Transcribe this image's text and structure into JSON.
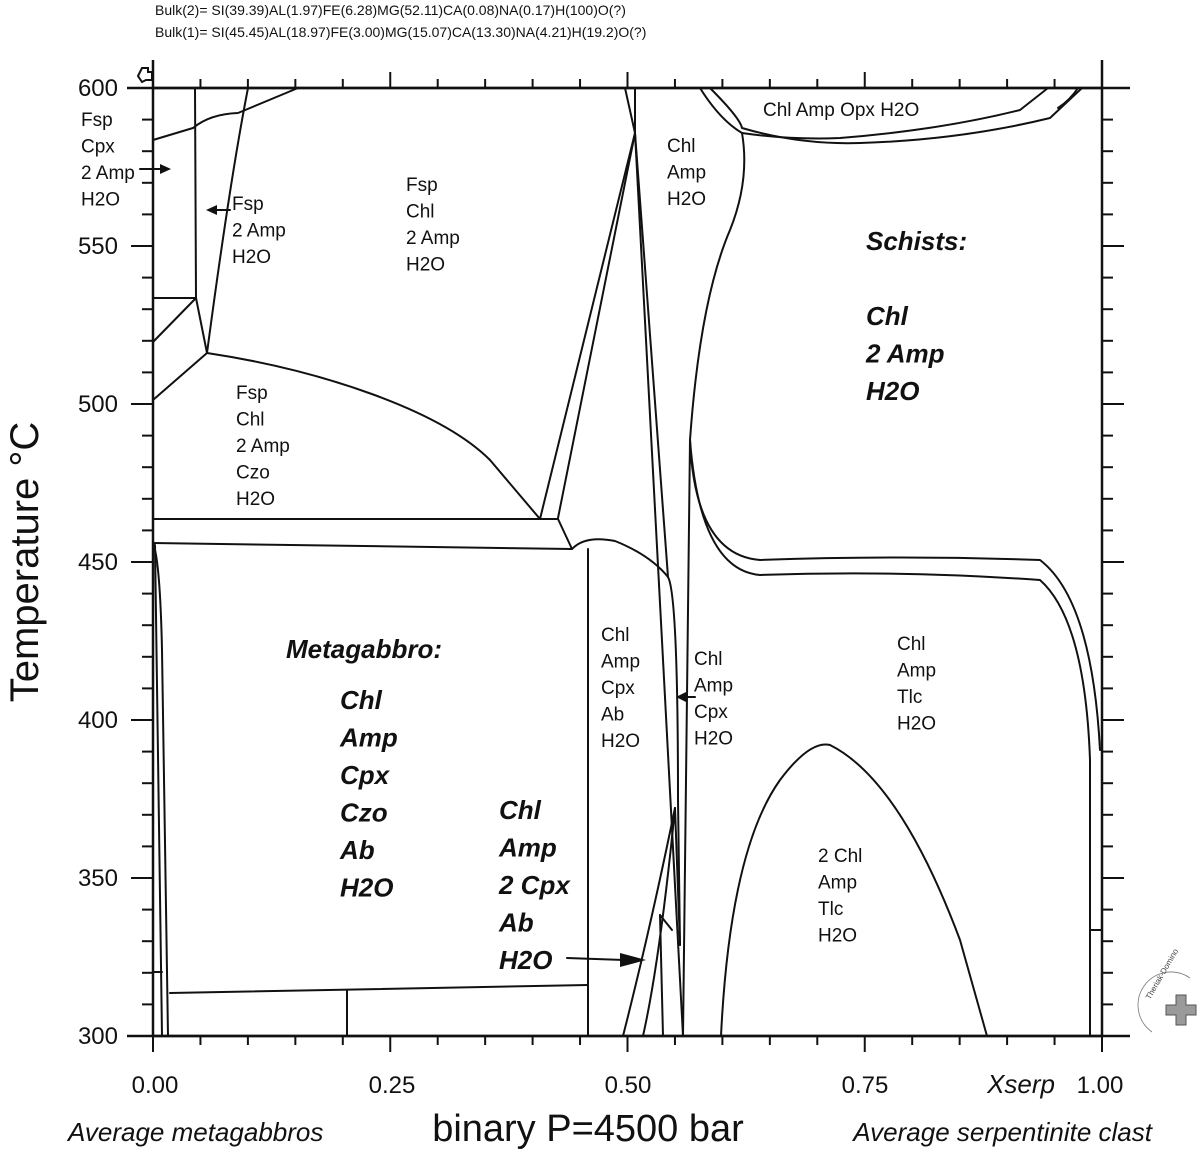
{
  "header": {
    "bulk2": "Bulk(2)= SI(39.39)AL(1.97)FE(6.28)MG(52.11)CA(0.08)NA(0.17)H(100)O(?)",
    "bulk1": "Bulk(1)= SI(45.45)AL(18.97)FE(3.00)MG(15.07)CA(13.30)NA(4.21)H(19.2)O(?)"
  },
  "chart_data": {
    "type": "phase-diagram",
    "title": "binary P=4500 bar",
    "xlabel": "Xserp",
    "ylabel": "Temperature °C",
    "xlim": [
      0,
      1
    ],
    "ylim": [
      300,
      600
    ],
    "x_ticks": [
      "0.00",
      "0.25",
      "0.50",
      "0.75",
      "1.00"
    ],
    "y_ticks": [
      "600",
      "550",
      "500",
      "450",
      "400",
      "350",
      "300"
    ],
    "end_labels": {
      "left": "Average metagabbros",
      "right": "Average serpentinite clast"
    },
    "fields": [
      {
        "id": "f1",
        "lines": [
          "Fsp",
          "Cpx",
          "2 Amp",
          "H2O"
        ]
      },
      {
        "id": "f2",
        "lines": [
          "Fsp",
          "2 Amp",
          "H2O"
        ]
      },
      {
        "id": "f3",
        "lines": [
          "Fsp",
          "Chl",
          "2 Amp",
          "H2O"
        ]
      },
      {
        "id": "f4",
        "lines": [
          "Fsp",
          "Chl",
          "2 Amp",
          "Czo",
          "H2O"
        ]
      },
      {
        "id": "f5",
        "lines": [
          "Chl",
          "Amp",
          "H2O"
        ]
      },
      {
        "id": "f6",
        "lines": [
          "Chl Amp Opx H2O"
        ]
      },
      {
        "id": "f7",
        "lines": [
          "Chl",
          "Amp",
          "Cpx",
          "Ab",
          "H2O"
        ]
      },
      {
        "id": "f8",
        "lines": [
          "Chl",
          "Amp",
          "Cpx",
          "H2O"
        ]
      },
      {
        "id": "f9",
        "lines": [
          "Chl",
          "Amp",
          "Tlc",
          "H2O"
        ]
      },
      {
        "id": "f10",
        "lines": [
          "2 Chl",
          "Amp",
          "Tlc",
          "H2O"
        ]
      }
    ],
    "big_labels": [
      {
        "id": "schists",
        "lines": [
          "Schists:",
          "",
          "Chl",
          "2 Amp",
          "H2O"
        ]
      },
      {
        "id": "metagabbro-title",
        "lines": [
          "Metagabbro:"
        ]
      },
      {
        "id": "metagabbro",
        "lines": [
          "Chl",
          "Amp",
          "Cpx",
          "Czo",
          "Ab",
          "H2O"
        ]
      },
      {
        "id": "chl-2cpx",
        "lines": [
          "Chl",
          "Amp",
          "2 Cpx",
          "Ab",
          "H2O"
        ]
      }
    ],
    "logo": "Theriak-Domino",
    "colors": {
      "ink": "#111111",
      "background": "#ffffff",
      "logo": "#888888"
    }
  }
}
